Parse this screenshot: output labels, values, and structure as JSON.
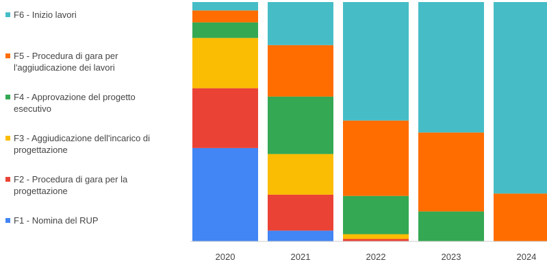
{
  "chart_data": {
    "type": "bar",
    "stacked": true,
    "normalized": true,
    "categories": [
      "2020",
      "2021",
      "2022",
      "2023",
      "2024"
    ],
    "legend_position": "left",
    "grid": false,
    "ylim": [
      0,
      100
    ],
    "series": [
      {
        "name": "F1 - Nomina del RUP",
        "color": "#4285f4",
        "values": [
          39,
          4.5,
          0,
          0,
          0
        ]
      },
      {
        "name": "F2 - Procedura di gara per la\nprogettazione",
        "color": "#ea4335",
        "values": [
          25,
          15,
          1,
          0,
          0
        ]
      },
      {
        "name": "F3 - Aggiudicazione dell'incarico di\nprogettazione",
        "color": "#fbbc04",
        "values": [
          21,
          17,
          2,
          0,
          0
        ]
      },
      {
        "name": "F4 - Approvazione del progetto\nesecutivo",
        "color": "#34a853",
        "values": [
          6.5,
          24,
          16,
          12.5,
          0
        ]
      },
      {
        "name": "F5 - Procedura di gara per\nl'aggiudicazione dei lavori",
        "color": "#ff6d01",
        "values": [
          5,
          21.5,
          31.5,
          33,
          20
        ]
      },
      {
        "name": "F6 - Inizio lavori",
        "color": "#46bdc6",
        "values": [
          3.5,
          18,
          49.5,
          54.5,
          80
        ]
      }
    ]
  }
}
